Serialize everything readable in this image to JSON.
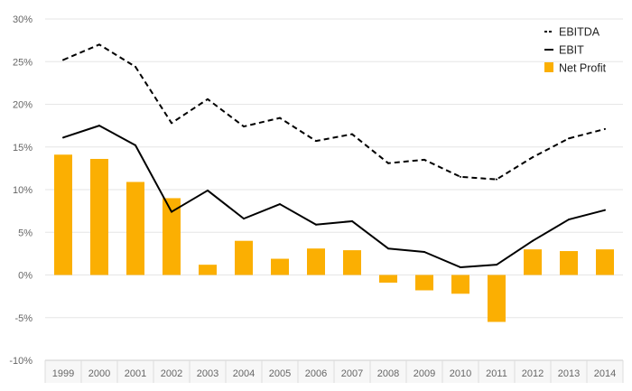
{
  "chart_data": {
    "type": "bar",
    "categories": [
      "1999",
      "2000",
      "2001",
      "2002",
      "2003",
      "2004",
      "2005",
      "2006",
      "2007",
      "2008",
      "2009",
      "2010",
      "2011",
      "2012",
      "2013",
      "2014"
    ],
    "ylim": [
      -10,
      30
    ],
    "yticks": [
      -10,
      -5,
      0,
      5,
      10,
      15,
      20,
      25,
      30
    ],
    "ytick_labels": [
      "-10%",
      "-5%",
      "0%",
      "5%",
      "10%",
      "15%",
      "20%",
      "25%",
      "30%"
    ],
    "grid": true,
    "legend_position": "top-right",
    "series": [
      {
        "name": "EBITDA",
        "type": "line",
        "style": "dashed",
        "color": "#000000",
        "values": [
          25.2,
          27.0,
          24.4,
          17.8,
          20.6,
          17.4,
          18.4,
          15.7,
          16.5,
          13.1,
          13.5,
          11.5,
          11.2,
          13.8,
          16.0,
          17.1
        ]
      },
      {
        "name": "EBIT",
        "type": "line",
        "style": "solid",
        "color": "#000000",
        "values": [
          16.1,
          17.5,
          15.2,
          7.4,
          9.9,
          6.6,
          8.3,
          5.9,
          6.3,
          3.1,
          2.7,
          0.9,
          1.2,
          4.0,
          6.5,
          7.6
        ]
      },
      {
        "name": "Net Profit",
        "type": "bar",
        "color": "#FBAF02",
        "values": [
          14.1,
          13.6,
          10.9,
          9.0,
          1.2,
          4.0,
          1.9,
          3.1,
          2.9,
          -0.9,
          -1.8,
          -2.2,
          -5.5,
          3.0,
          2.8,
          3.0
        ]
      }
    ]
  }
}
